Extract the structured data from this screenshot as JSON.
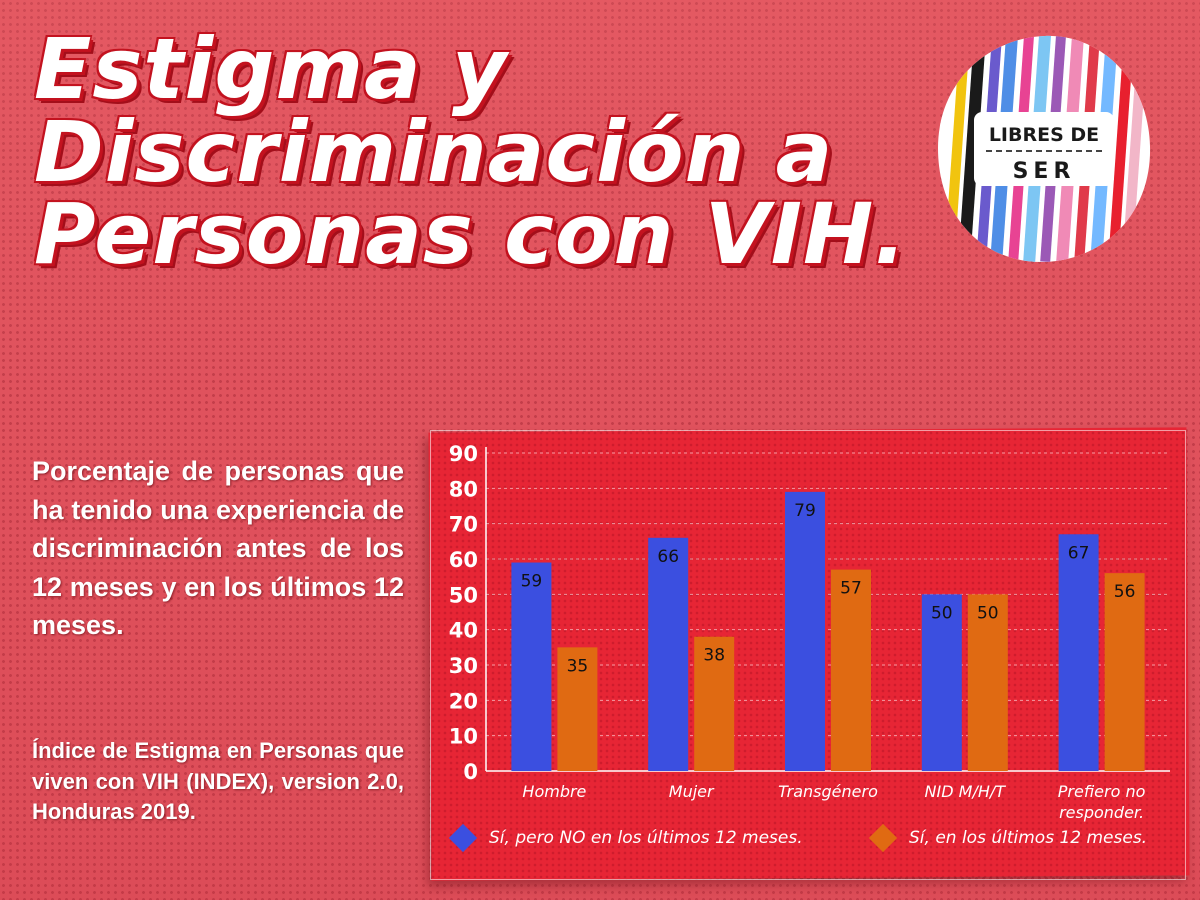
{
  "title_lines": [
    "Estigma y",
    "Discriminación a",
    "Personas con VIH."
  ],
  "logo": {
    "line1": "LIBRES DE",
    "line2": "SER"
  },
  "description": "Porcentaje de personas que ha tenido una experiencia de discriminación antes de los 12 meses y en los últimos 12 meses.",
  "source": "Índice de Estigma en Personas que viven con VIH (INDEX), version 2.0, Honduras 2019.",
  "colors": {
    "background": "#e0525d",
    "panel": "#e72535",
    "series_blue": "#3b4fe0",
    "series_orange": "#e06a12",
    "title_outline": "#c3121f"
  },
  "chart_data": {
    "type": "bar",
    "title": "",
    "xlabel": "",
    "ylabel": "",
    "ylim": [
      0,
      90
    ],
    "yticks": [
      0,
      10,
      20,
      30,
      40,
      50,
      60,
      70,
      80,
      90
    ],
    "grid": true,
    "legend_position": "bottom",
    "categories": [
      [
        "Hombre"
      ],
      [
        "Mujer"
      ],
      [
        "Transgénero"
      ],
      [
        "NID M/H/T"
      ],
      [
        "Prefiero no",
        "responder."
      ]
    ],
    "series": [
      {
        "name": "Sí, pero NO en los últimos 12 meses.",
        "color": "#3b4fe0",
        "values": [
          59,
          66,
          79,
          50,
          67
        ]
      },
      {
        "name": "Sí, en los últimos 12 meses.",
        "color": "#e06a12",
        "values": [
          35,
          38,
          57,
          50,
          56
        ]
      }
    ]
  }
}
